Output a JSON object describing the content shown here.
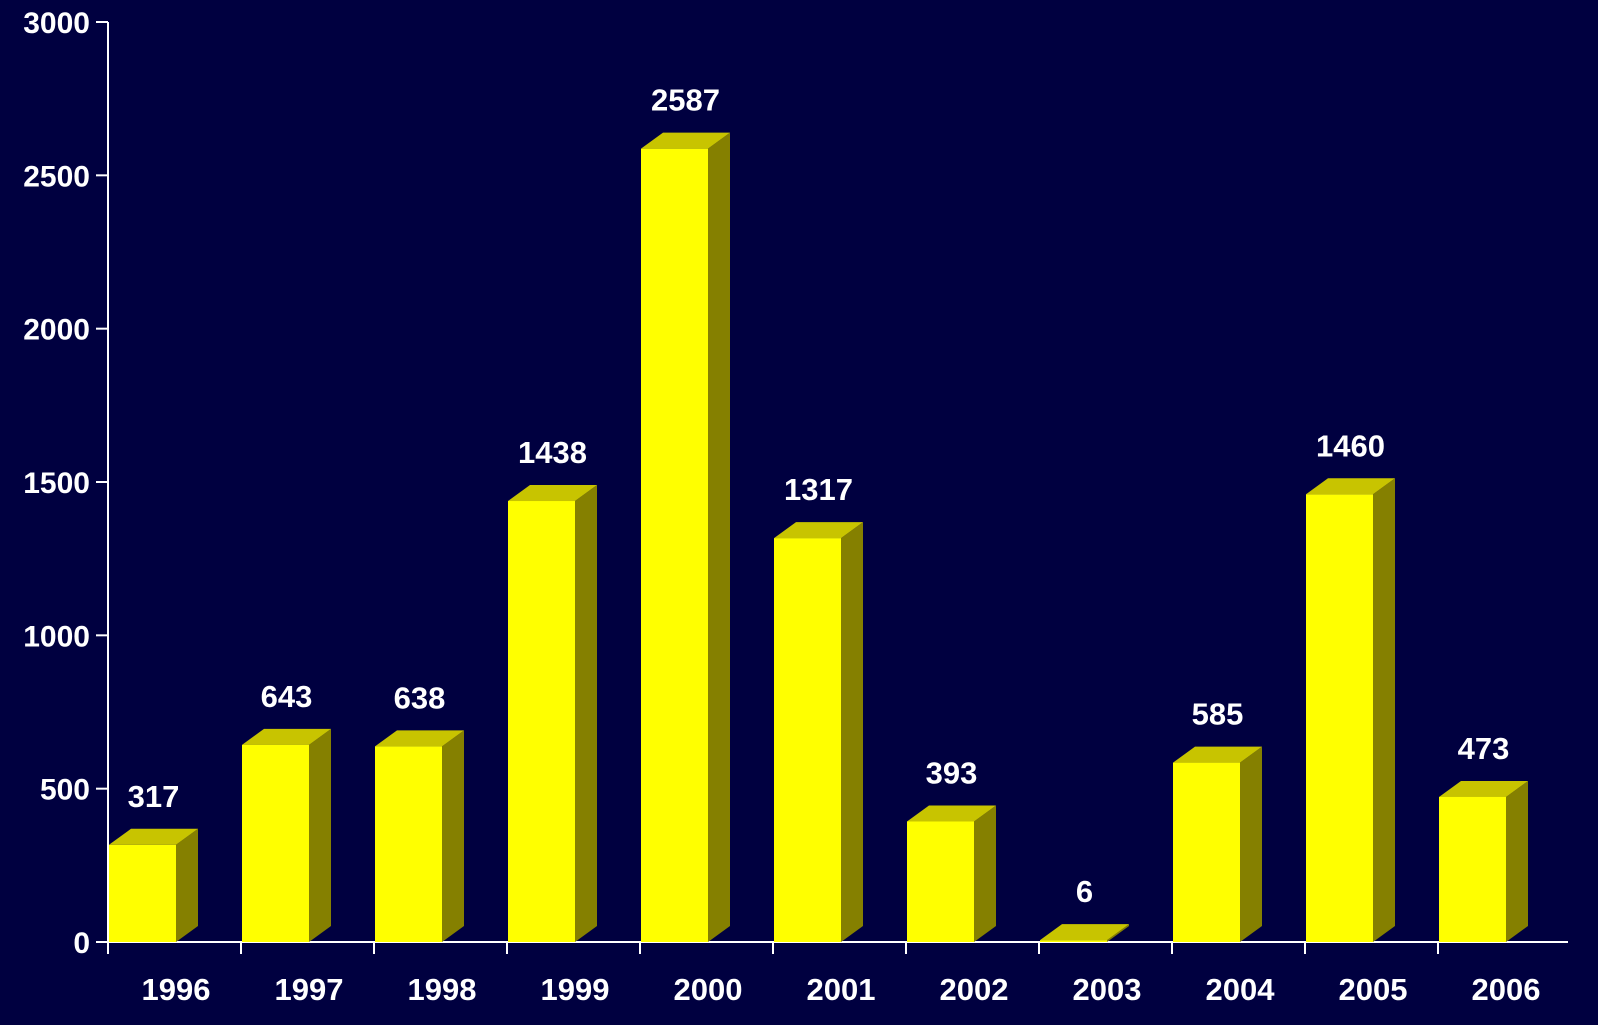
{
  "colors": {
    "background": "#000040",
    "bar_front": "#ffff00",
    "bar_top": "#c8c400",
    "bar_side": "#858000",
    "axis": "#ffffff",
    "text": "#ffffff"
  },
  "chart_data": {
    "type": "bar",
    "title": "",
    "xlabel": "",
    "ylabel": "",
    "categories": [
      "1996",
      "1997",
      "1998",
      "1999",
      "2000",
      "2001",
      "2002",
      "2003",
      "2004",
      "2005",
      "2006"
    ],
    "values": [
      317,
      643,
      638,
      1438,
      2587,
      1317,
      393,
      6,
      585,
      1460,
      473
    ],
    "data_labels": [
      "317",
      "643",
      "638",
      "1438",
      "2587",
      "1317",
      "393",
      "6",
      "585",
      "1460",
      "473"
    ],
    "ylim": [
      0,
      3000
    ],
    "yticks": [
      0,
      500,
      1000,
      1500,
      2000,
      2500,
      3000
    ],
    "ytick_labels": [
      "0",
      "500",
      "1000",
      "1500",
      "2000",
      "2500",
      "3000"
    ],
    "grid": false,
    "legend": "none",
    "style": "3d-bar"
  }
}
